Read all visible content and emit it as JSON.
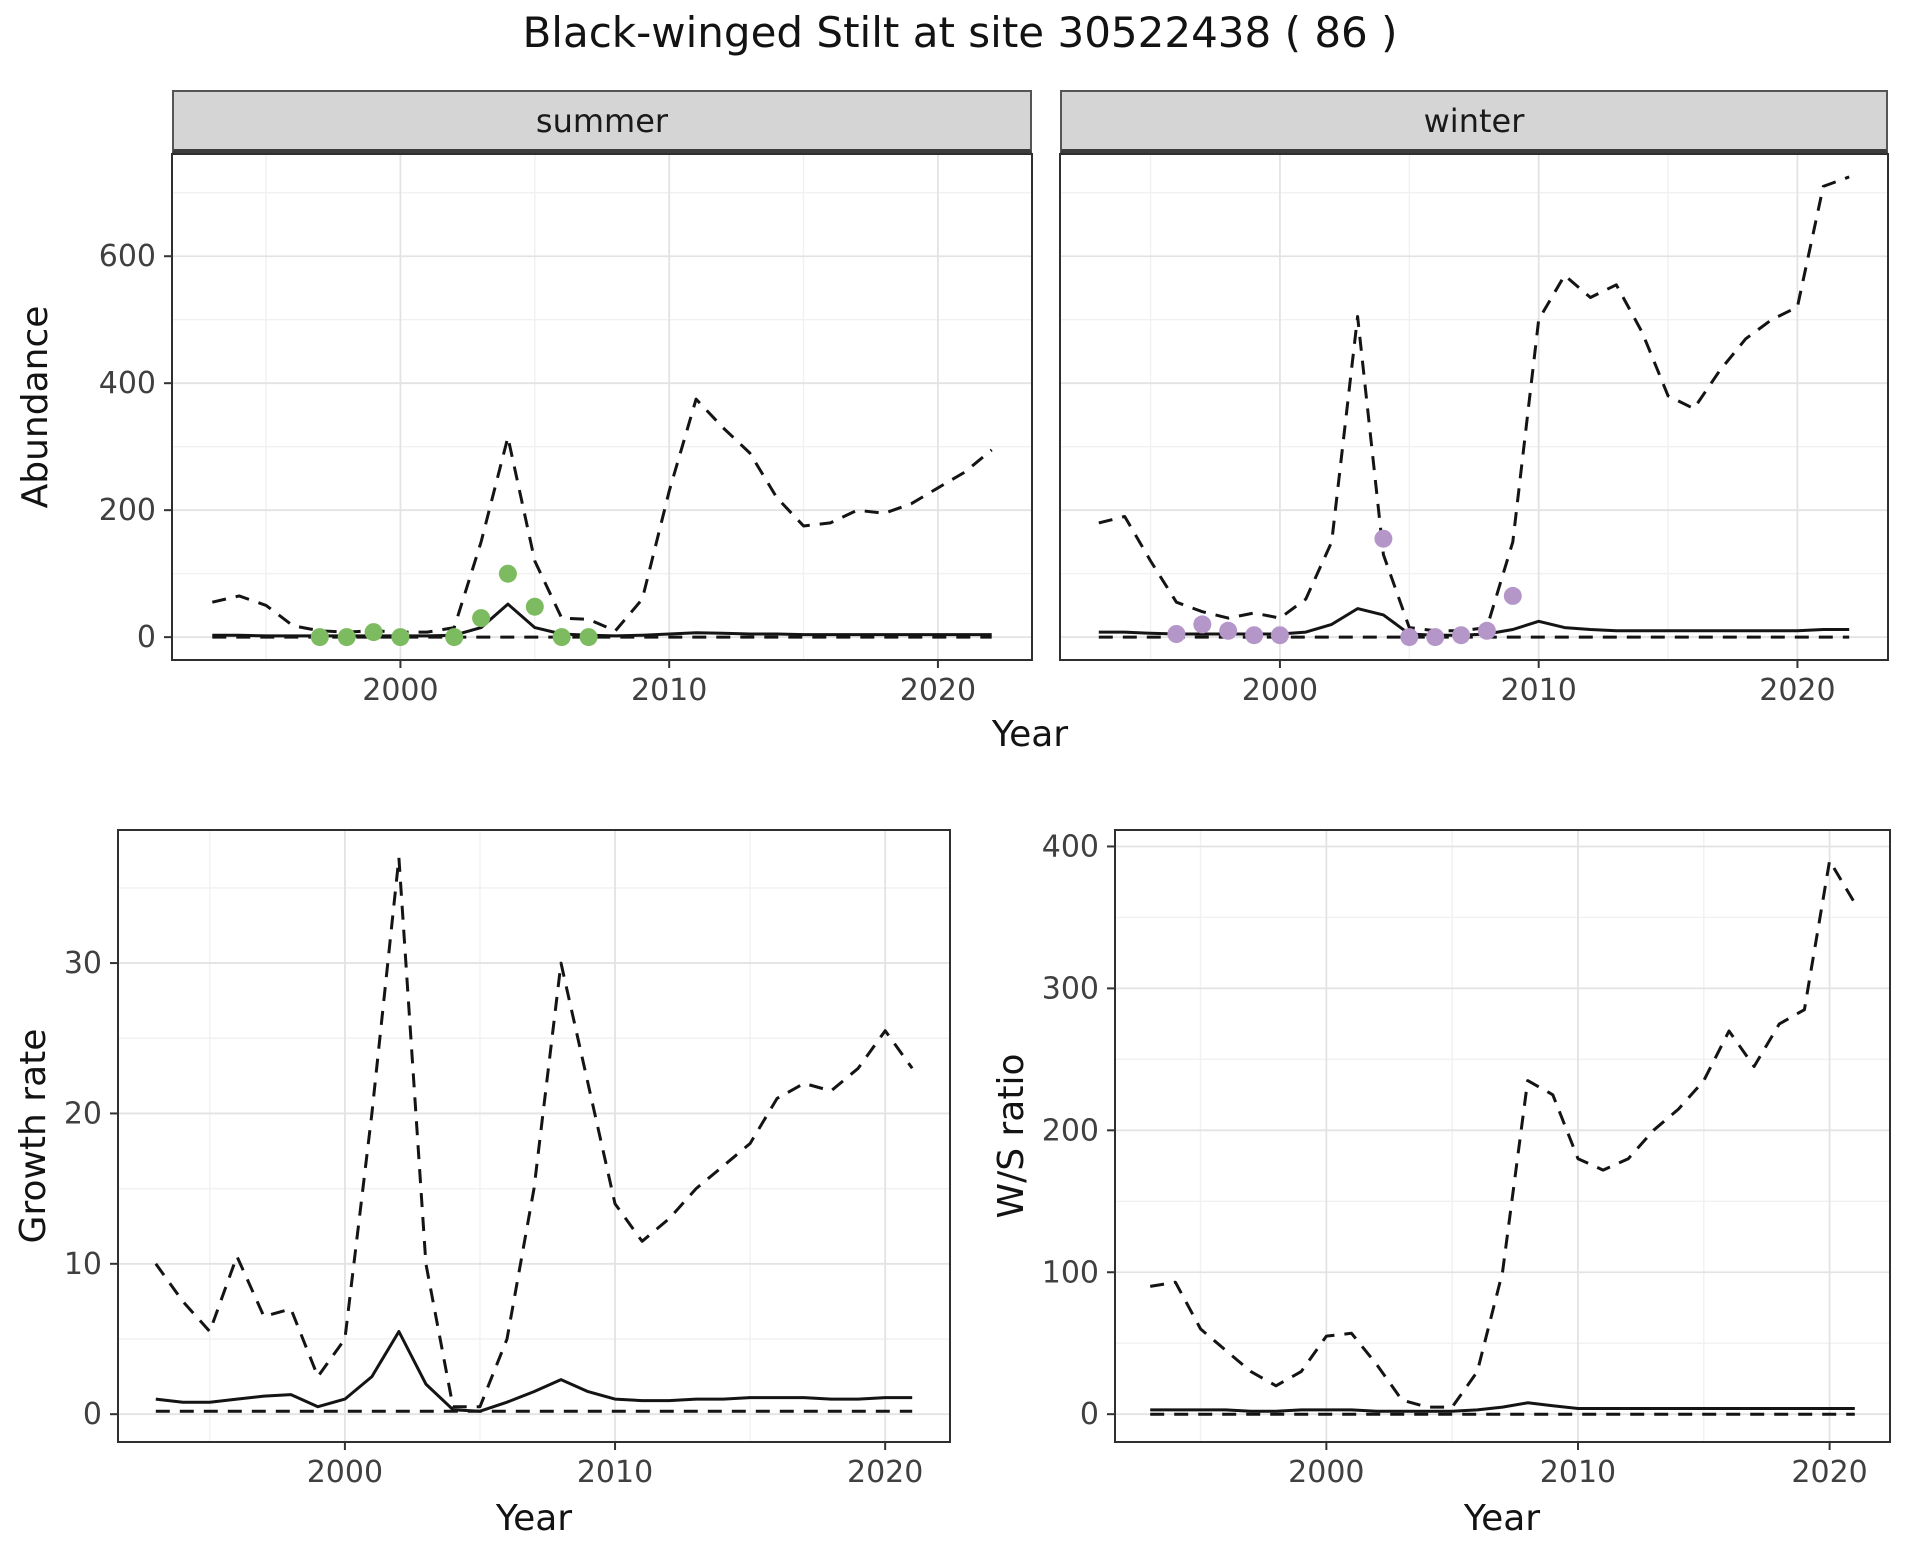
{
  "title": "Black-winged Stilt at site 30522438 ( 86 )",
  "chart_data": [
    {
      "id": "abundance-summer",
      "type": "line",
      "facet_label": "summer",
      "xlabel": "Year",
      "ylabel": "Abundance",
      "xlim": [
        1991.5,
        2023.5
      ],
      "ylim": [
        -36,
        761
      ],
      "xticks": [
        2000,
        2010,
        2020
      ],
      "yticks": [
        0,
        200,
        400,
        600
      ],
      "show_yticklabels": true,
      "grid": true,
      "legend": "none",
      "x": [
        1993,
        1994,
        1995,
        1996,
        1997,
        1998,
        1999,
        2000,
        2001,
        2002,
        2003,
        2004,
        2005,
        2006,
        2007,
        2008,
        2009,
        2010,
        2011,
        2012,
        2013,
        2014,
        2015,
        2016,
        2017,
        2018,
        2019,
        2020,
        2021,
        2022
      ],
      "series": [
        {
          "name": "upper-ci",
          "style": "dashed",
          "values": [
            55,
            65,
            50,
            18,
            10,
            8,
            10,
            8,
            8,
            15,
            150,
            315,
            120,
            30,
            28,
            10,
            60,
            230,
            375,
            330,
            290,
            220,
            175,
            180,
            200,
            195,
            210,
            235,
            260,
            295
          ]
        },
        {
          "name": "mean",
          "style": "solid",
          "values": [
            3,
            3,
            2,
            2,
            2,
            2,
            2,
            2,
            2,
            3,
            15,
            52,
            15,
            5,
            3,
            2,
            3,
            5,
            7,
            6,
            5,
            5,
            4,
            4,
            4,
            4,
            4,
            4,
            4,
            4
          ]
        },
        {
          "name": "lower-ci",
          "style": "dashed",
          "values": [
            0,
            0,
            0,
            0,
            0,
            0,
            0,
            0,
            0,
            0,
            0,
            0,
            0,
            0,
            0,
            0,
            0,
            0,
            0,
            0,
            0,
            0,
            0,
            0,
            0,
            0,
            0,
            0,
            0,
            0
          ]
        }
      ],
      "points": {
        "name": "summer-observations",
        "color": "#7cbb5f",
        "x": [
          1997,
          1998,
          1999,
          2000,
          2002,
          2003,
          2004,
          2005,
          2006,
          2007
        ],
        "y": [
          0,
          0,
          8,
          0,
          0,
          30,
          100,
          48,
          0,
          0
        ]
      }
    },
    {
      "id": "abundance-winter",
      "type": "line",
      "facet_label": "winter",
      "xlabel": "Year",
      "ylabel": "Abundance",
      "xlim": [
        1991.5,
        2023.5
      ],
      "ylim": [
        -36,
        761
      ],
      "xticks": [
        2000,
        2010,
        2020
      ],
      "yticks": [
        0,
        200,
        400,
        600
      ],
      "show_yticklabels": false,
      "grid": true,
      "legend": "none",
      "x": [
        1993,
        1994,
        1995,
        1996,
        1997,
        1998,
        1999,
        2000,
        2001,
        2002,
        2003,
        2004,
        2005,
        2006,
        2007,
        2008,
        2009,
        2010,
        2011,
        2012,
        2013,
        2014,
        2015,
        2016,
        2017,
        2018,
        2019,
        2020,
        2021,
        2022
      ],
      "series": [
        {
          "name": "upper-ci",
          "style": "dashed",
          "values": [
            180,
            190,
            120,
            55,
            40,
            30,
            38,
            30,
            60,
            150,
            505,
            130,
            15,
            10,
            10,
            15,
            150,
            500,
            570,
            535,
            555,
            480,
            380,
            360,
            420,
            470,
            500,
            520,
            710,
            725
          ]
        },
        {
          "name": "mean",
          "style": "solid",
          "values": [
            8,
            8,
            6,
            5,
            5,
            5,
            5,
            5,
            8,
            20,
            45,
            35,
            5,
            3,
            3,
            5,
            12,
            25,
            15,
            12,
            10,
            10,
            10,
            10,
            10,
            10,
            10,
            10,
            12,
            12
          ]
        },
        {
          "name": "lower-ci",
          "style": "dashed",
          "values": [
            0,
            0,
            0,
            0,
            0,
            0,
            0,
            0,
            0,
            0,
            0,
            0,
            0,
            0,
            0,
            0,
            0,
            0,
            0,
            0,
            0,
            0,
            0,
            0,
            0,
            0,
            0,
            0,
            0,
            0
          ]
        }
      ],
      "points": {
        "name": "winter-observations",
        "color": "#b596c9",
        "x": [
          1996,
          1997,
          1998,
          1999,
          2000,
          2004,
          2005,
          2006,
          2007,
          2008,
          2009
        ],
        "y": [
          5,
          20,
          10,
          3,
          3,
          155,
          0,
          0,
          3,
          10,
          65
        ]
      }
    },
    {
      "id": "growth-rate",
      "type": "line",
      "xlabel": "Year",
      "ylabel": "Growth rate",
      "xlim": [
        1991.6,
        2022.4
      ],
      "ylim": [
        -1.85,
        38.85
      ],
      "xticks": [
        2000,
        2010,
        2020
      ],
      "yticks": [
        0,
        10,
        20,
        30
      ],
      "show_yticklabels": true,
      "grid": true,
      "legend": "none",
      "x": [
        1993,
        1994,
        1995,
        1996,
        1997,
        1998,
        1999,
        2000,
        2001,
        2002,
        2003,
        2004,
        2005,
        2006,
        2007,
        2008,
        2009,
        2010,
        2011,
        2012,
        2013,
        2014,
        2015,
        2016,
        2017,
        2018,
        2019,
        2020,
        2021
      ],
      "series": [
        {
          "name": "upper-ci",
          "style": "dashed",
          "values": [
            10,
            7.5,
            5.5,
            10.5,
            6.5,
            7,
            2.5,
            5,
            20,
            37,
            10,
            0.5,
            0.5,
            5,
            15,
            30,
            22,
            14,
            11.5,
            13,
            15,
            16.5,
            18,
            21,
            22,
            21.5,
            23,
            25.5,
            23
          ]
        },
        {
          "name": "mean",
          "style": "solid",
          "values": [
            1,
            0.8,
            0.8,
            1,
            1.2,
            1.3,
            0.5,
            1,
            2.5,
            5.5,
            2,
            0.3,
            0.2,
            0.8,
            1.5,
            2.3,
            1.5,
            1,
            0.9,
            0.9,
            1,
            1,
            1.1,
            1.1,
            1.1,
            1,
            1,
            1.1,
            1.1
          ]
        },
        {
          "name": "lower-ci",
          "style": "dashed",
          "values": [
            0.2,
            0.2,
            0.2,
            0.2,
            0.2,
            0.2,
            0.2,
            0.2,
            0.2,
            0.2,
            0.2,
            0.2,
            0.2,
            0.2,
            0.2,
            0.2,
            0.2,
            0.2,
            0.2,
            0.2,
            0.2,
            0.2,
            0.2,
            0.2,
            0.2,
            0.2,
            0.2,
            0.2,
            0.2
          ]
        }
      ]
    },
    {
      "id": "ws-ratio",
      "type": "line",
      "xlabel": "Year",
      "ylabel": "W/S ratio",
      "xlim": [
        1991.6,
        2022.4
      ],
      "ylim": [
        -19.6,
        411.6
      ],
      "xticks": [
        2000,
        2010,
        2020
      ],
      "yticks": [
        0,
        100,
        200,
        300,
        400
      ],
      "show_yticklabels": true,
      "grid": true,
      "legend": "none",
      "x": [
        1993,
        1994,
        1995,
        1996,
        1997,
        1998,
        1999,
        2000,
        2001,
        2002,
        2003,
        2004,
        2005,
        2006,
        2007,
        2008,
        2009,
        2010,
        2011,
        2012,
        2013,
        2014,
        2015,
        2016,
        2017,
        2018,
        2019,
        2020,
        2021
      ],
      "series": [
        {
          "name": "upper-ci",
          "style": "dashed",
          "values": [
            90,
            93,
            60,
            45,
            30,
            20,
            30,
            55,
            57,
            35,
            10,
            5,
            5,
            30,
            100,
            235,
            225,
            180,
            172,
            180,
            200,
            215,
            235,
            270,
            245,
            275,
            285,
            390,
            360
          ]
        },
        {
          "name": "mean",
          "style": "solid",
          "values": [
            3,
            3,
            3,
            3,
            2,
            2,
            3,
            3,
            3,
            2,
            2,
            2,
            2,
            3,
            5,
            8,
            6,
            4,
            4,
            4,
            4,
            4,
            4,
            4,
            4,
            4,
            4,
            4,
            4
          ]
        },
        {
          "name": "lower-ci",
          "style": "dashed",
          "values": [
            0,
            0,
            0,
            0,
            0,
            0,
            0,
            0,
            0,
            0,
            0,
            0,
            0,
            0,
            0,
            0,
            0,
            0,
            0,
            0,
            0,
            0,
            0,
            0,
            0,
            0,
            0,
            0,
            0
          ]
        }
      ]
    }
  ],
  "style": {
    "line_color": "#141414",
    "strip_bg": "#d5d5d5",
    "grid_major": "#e3e3e3",
    "grid_minor": "#f1f1f1"
  }
}
